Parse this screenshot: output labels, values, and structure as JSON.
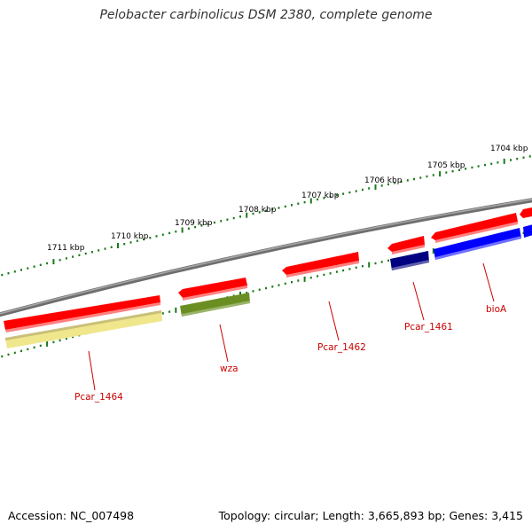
{
  "title": "Pelobacter carbinolicus DSM 2380, complete genome",
  "footer": {
    "accession": "Accession: NC_007498",
    "summary": "Topology: circular; Length: 3,665,893 bp; Genes: 3,415"
  },
  "scale": {
    "tick_labels": [
      "1704 kbp",
      "1705 kbp",
      "1706 kbp",
      "1707 kbp",
      "1708 kbp",
      "1709 kbp",
      "1710 kbp",
      "1711 kbp"
    ],
    "tick_color": "#1a7a1a"
  },
  "genes": [
    {
      "label": "Pcar_1464",
      "color": "#f0e68c",
      "track": "inner"
    },
    {
      "label": "wza",
      "color": "#6b8e23",
      "track": "inner"
    },
    {
      "label": "Pcar_1462",
      "color": "#ff0000",
      "track": "outer"
    },
    {
      "label": "Pcar_1461",
      "color": "#000080",
      "track": "inner"
    },
    {
      "label": "bioA",
      "color": "#0000ff",
      "track": "inner"
    }
  ],
  "colors": {
    "backbone": "#808080",
    "forward_strand": "#ff0000",
    "label": "#cc0000"
  }
}
